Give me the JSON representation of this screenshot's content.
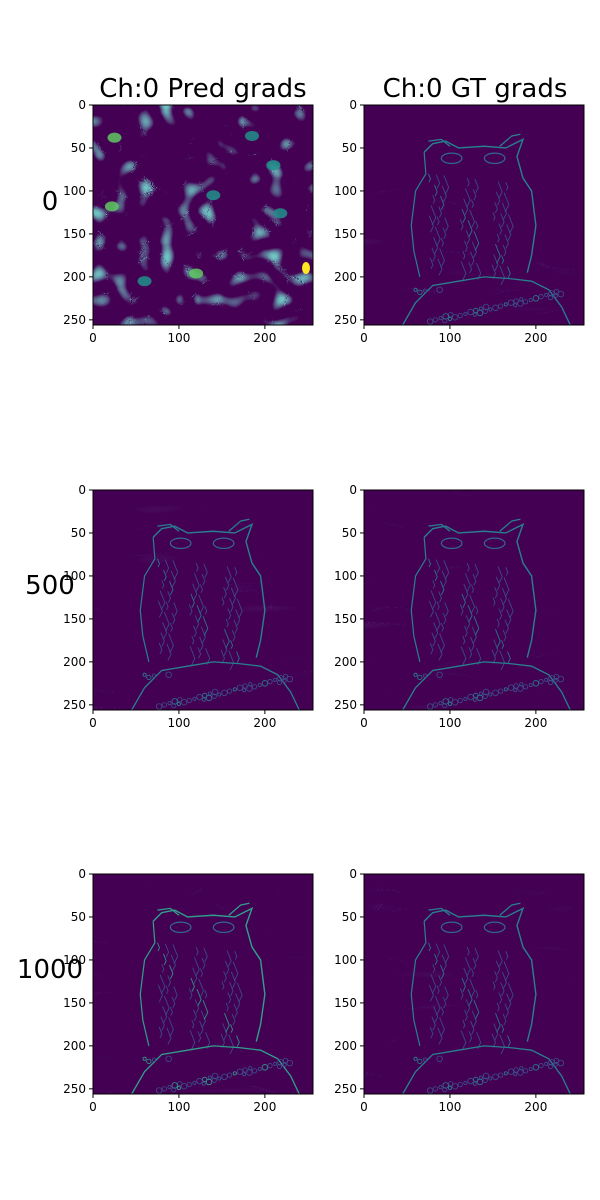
{
  "column_titles": [
    "Ch:0 Pred grads",
    "Ch:0 GT grads"
  ],
  "row_labels": [
    "0",
    "500",
    "1000"
  ],
  "colormap": {
    "name": "viridis",
    "low": "#440154",
    "mid": "#21918c",
    "high": "#fde725"
  },
  "chart_data": {
    "type": "heatmap",
    "image_size": [
      256,
      256
    ],
    "xlim": [
      0,
      256
    ],
    "ylim": [
      256,
      0
    ],
    "xticks": [
      0,
      100,
      200
    ],
    "yticks": [
      0,
      50,
      100,
      150,
      200,
      250
    ],
    "panels": [
      {
        "row": "0",
        "column": "Ch:0 Pred grads",
        "content": "noise-blobs"
      },
      {
        "row": "0",
        "column": "Ch:0 GT grads",
        "content": "owl-edges"
      },
      {
        "row": "500",
        "column": "Ch:0 Pred grads",
        "content": "owl-edges"
      },
      {
        "row": "500",
        "column": "Ch:0 GT grads",
        "content": "owl-edges"
      },
      {
        "row": "1000",
        "column": "Ch:0 Pred grads",
        "content": "owl-edges"
      },
      {
        "row": "1000",
        "column": "Ch:0 GT grads",
        "content": "owl-edges"
      }
    ]
  }
}
